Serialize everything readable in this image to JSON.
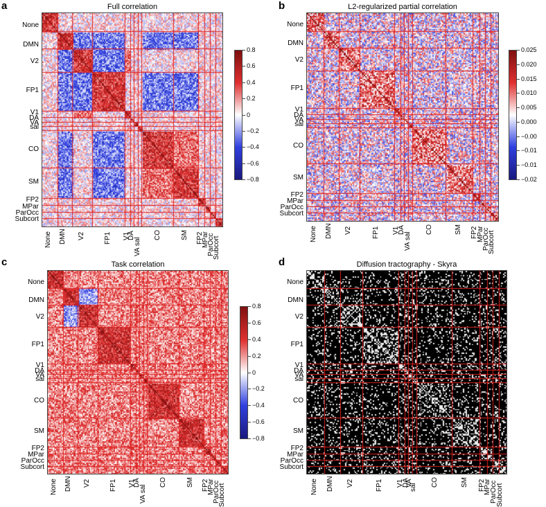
{
  "chart_data": [
    {
      "type": "heatmap",
      "panel_label": "a",
      "title": "Full correlation",
      "row_labels": [
        "None",
        "DMN",
        "V2",
        "FP1",
        "V1",
        "DA",
        "VA",
        "sal",
        "CO",
        "SM",
        "FP2",
        "MPar",
        "ParOcc",
        "Subcort"
      ],
      "col_labels": [
        "None",
        "DMN",
        "V2",
        "FP1",
        "V1",
        "DA",
        "VA sal",
        "CO",
        "SM",
        "FP2",
        "MPar",
        "ParOcc",
        "Subcort"
      ],
      "colorbar_ticks": [
        "0.8",
        "0.6",
        "0.4",
        "0.2",
        "0",
        "−0.2",
        "−0.4",
        "−0.6",
        "−0.8"
      ],
      "colormap": [
        "#1a1a80",
        "#3040e0",
        "#ffffff",
        "#e03030",
        "#801010"
      ],
      "grid_line_color": "#e02020",
      "scale": [
        -0.8,
        0.8
      ]
    },
    {
      "type": "heatmap",
      "panel_label": "b",
      "title": "L2-regularized partial correlation",
      "row_labels": [
        "None",
        "DMN",
        "V2",
        "FP1",
        "V1",
        "DA",
        "VA",
        "sal",
        "CO",
        "SM",
        "FP2",
        "MPar",
        "ParOcc",
        "Subcort"
      ],
      "col_labels": [
        "None",
        "DMN",
        "V2",
        "FP1",
        "V1",
        "DA",
        "VA sal",
        "CO",
        "SM",
        "FP2",
        "MPar",
        "ParOcc",
        "Subcort"
      ],
      "colorbar_ticks": [
        "0.025",
        "0.020",
        "0.015",
        "0.010",
        "0.005",
        "0.000",
        "−0.00",
        "−0.01",
        "−0.01",
        "−0.02"
      ],
      "colormap": [
        "#1a1a80",
        "#3040e0",
        "#ffffff",
        "#e03030",
        "#801010"
      ],
      "grid_line_color": "#e02020",
      "scale": [
        -0.02,
        0.025
      ]
    },
    {
      "type": "heatmap",
      "panel_label": "c",
      "title": "Task correlation",
      "row_labels": [
        "None",
        "DMN",
        "V2",
        "FP1",
        "V1",
        "DA",
        "VA",
        "sal",
        "CO",
        "SM",
        "FP2",
        "MPar",
        "ParOcc",
        "Subcort"
      ],
      "col_labels": [
        "None",
        "DMN",
        "V2",
        "FP1",
        "V1",
        "DA",
        "VA sal",
        "CO",
        "SM",
        "FP2",
        "MPar",
        "ParOcc",
        "Subcort"
      ],
      "colorbar_ticks": [
        "0.8",
        "0.6",
        "0.4",
        "0.2",
        "0",
        "−0.2",
        "−0.4",
        "−0.6",
        "−0.8"
      ],
      "colormap": [
        "#1a1a80",
        "#3040e0",
        "#ffffff",
        "#e03030",
        "#801010"
      ],
      "grid_line_color": "#e02020",
      "scale": [
        -0.8,
        0.8
      ]
    },
    {
      "type": "heatmap",
      "panel_label": "d",
      "title": "Diffusion tractography - Skyra",
      "row_labels": [
        "None",
        "DMN",
        "V2",
        "FP1",
        "V1",
        "DA",
        "VA",
        "sal",
        "CO",
        "SM",
        "FP2",
        "MPar",
        "ParOcc",
        "Subcort"
      ],
      "col_labels": [
        "None",
        "DMN",
        "V2",
        "FP1",
        "V1",
        "DA",
        "VA",
        "sal",
        "CO",
        "SM",
        "FP2",
        "MPar",
        "ParOcc",
        "Subcort"
      ],
      "colorbar_ticks": [],
      "colormap": [
        "#000000",
        "#ffffff"
      ],
      "grid_line_color": "#e02020",
      "binary": true
    }
  ]
}
